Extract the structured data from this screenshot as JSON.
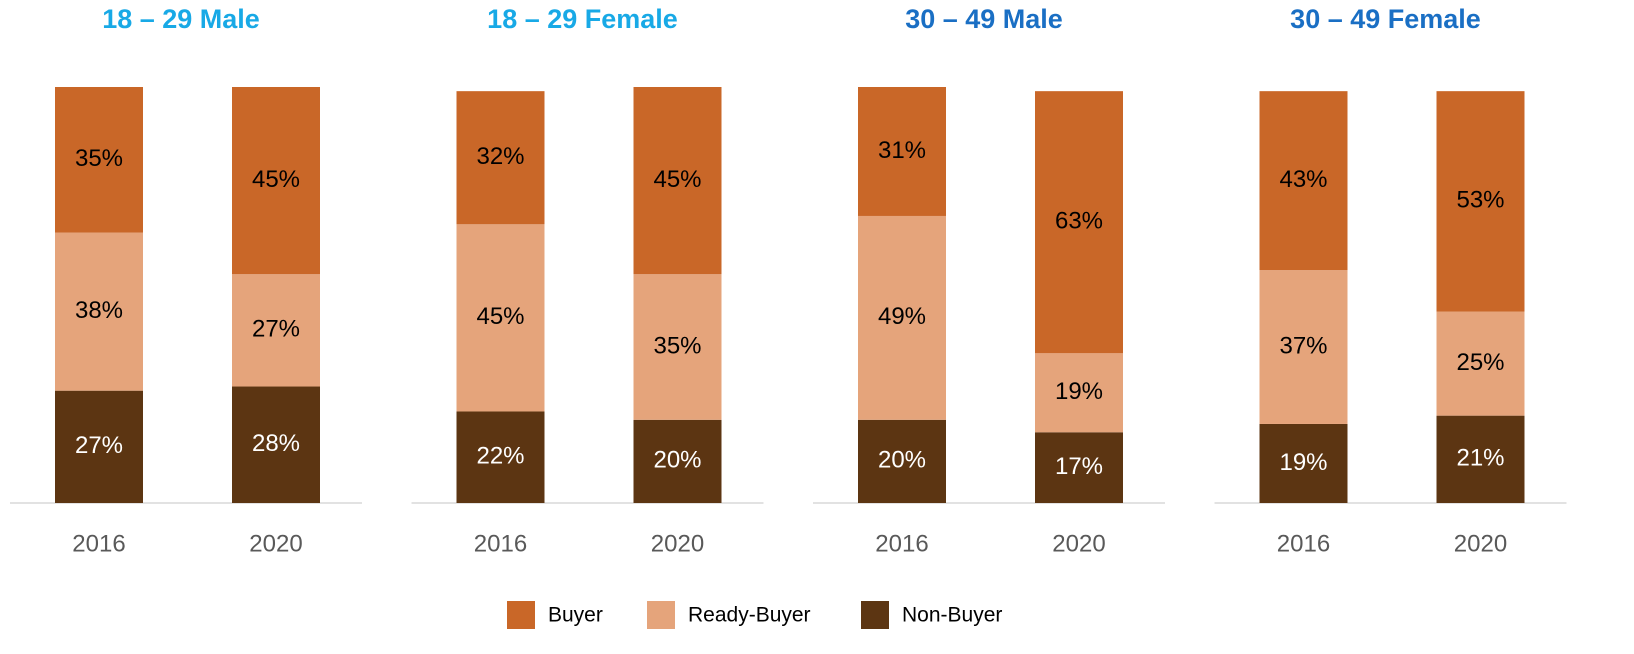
{
  "chart_data": {
    "type": "bar",
    "stacked": true,
    "ylim": [
      0,
      100
    ],
    "series": [
      {
        "name": "Buyer",
        "color": "#c96728",
        "label_color": "#000000"
      },
      {
        "name": "Ready-Buyer",
        "color": "#e5a47b",
        "label_color": "#000000"
      },
      {
        "name": "Non-Buyer",
        "color": "#5c3512",
        "label_color": "#ffffff"
      }
    ],
    "panels": [
      {
        "title": "18 – 29 Male",
        "title_color": "#18a9e6",
        "categories": [
          "2016",
          "2020"
        ],
        "series": [
          {
            "values": [
              35,
              45
            ],
            "value_labels": [
              "35%",
              "45%"
            ]
          },
          {
            "values": [
              38,
              27
            ],
            "value_labels": [
              "38%",
              "27%"
            ]
          },
          {
            "values": [
              27,
              28
            ],
            "value_labels": [
              "27%",
              "28%"
            ]
          }
        ]
      },
      {
        "title": "18 – 29 Female",
        "title_color": "#18a9e6",
        "categories": [
          "2016",
          "2020"
        ],
        "series": [
          {
            "values": [
              32,
              45
            ],
            "value_labels": [
              "32%",
              "45%"
            ]
          },
          {
            "values": [
              45,
              35
            ],
            "value_labels": [
              "45%",
              "35%"
            ]
          },
          {
            "values": [
              22,
              20
            ],
            "value_labels": [
              "22%",
              "20%"
            ]
          }
        ]
      },
      {
        "title": "30 – 49 Male",
        "title_color": "#1a6fc4",
        "categories": [
          "2016",
          "2020"
        ],
        "series": [
          {
            "values": [
              31,
              63
            ],
            "value_labels": [
              "31%",
              "63%"
            ]
          },
          {
            "values": [
              49,
              19
            ],
            "value_labels": [
              "49%",
              "19%"
            ]
          },
          {
            "values": [
              20,
              17
            ],
            "value_labels": [
              "20%",
              "17%"
            ]
          }
        ]
      },
      {
        "title": "30 – 49 Female",
        "title_color": "#1a6fc4",
        "categories": [
          "2016",
          "2020"
        ],
        "series": [
          {
            "values": [
              43,
              53
            ],
            "value_labels": [
              "43%",
              "53%"
            ]
          },
          {
            "values": [
              37,
              25
            ],
            "value_labels": [
              "37%",
              "25%"
            ]
          },
          {
            "values": [
              19,
              21
            ],
            "value_labels": [
              "19%",
              "21%"
            ]
          }
        ]
      }
    ]
  }
}
